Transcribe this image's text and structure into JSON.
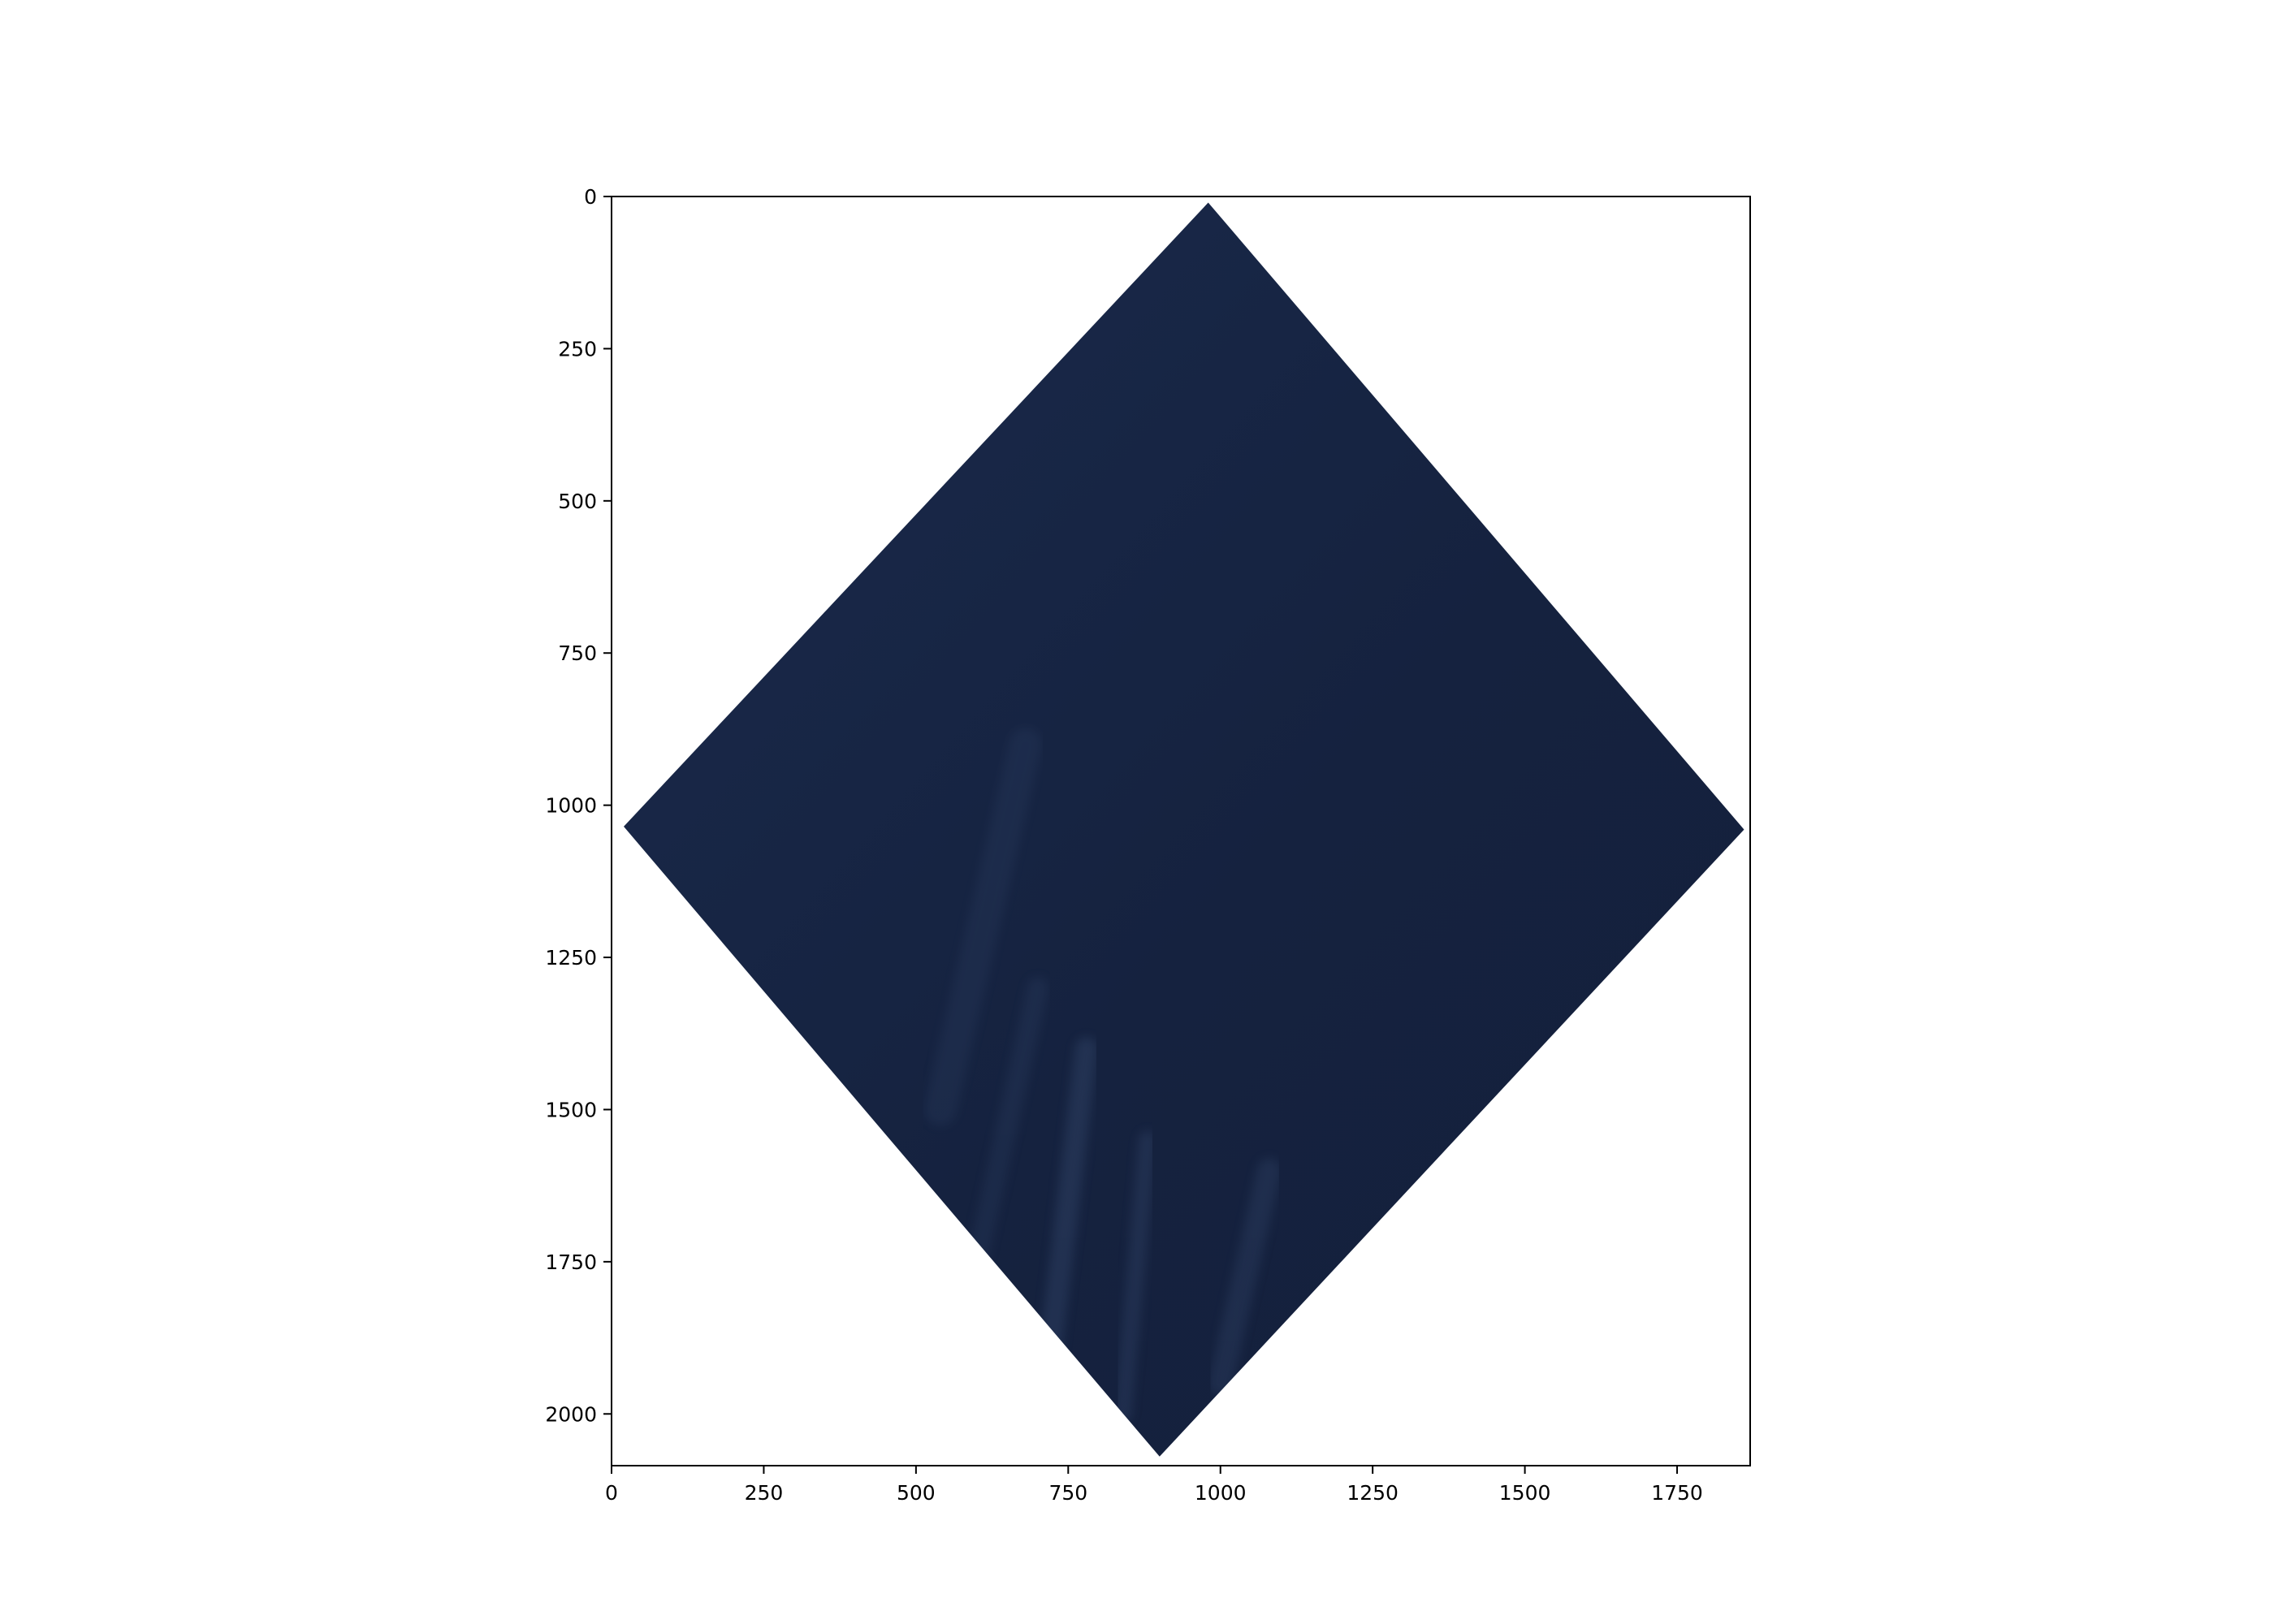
{
  "image": {
    "kind": "satellite scene (rotated swath on white background)",
    "scene_color": "#15223f",
    "scene_edge_color": "#1a2a4c",
    "streak_color": "#3a4f74",
    "background_color": "#ffffff",
    "axis_color": "#000000",
    "x_extent": [
      0,
      1870
    ],
    "y_extent": [
      2085,
      0
    ],
    "scene_corners": [
      {
        "name": "top",
        "x": 980,
        "y": 10
      },
      {
        "name": "right",
        "x": 1860,
        "y": 1040
      },
      {
        "name": "bottom",
        "x": 900,
        "y": 2070
      },
      {
        "name": "left",
        "x": 20,
        "y": 1035
      }
    ]
  },
  "axes": {
    "x_ticks": [
      "0",
      "250",
      "500",
      "750",
      "1000",
      "1250",
      "1500",
      "1750"
    ],
    "y_ticks": [
      "0",
      "250",
      "500",
      "750",
      "1000",
      "1250",
      "1500",
      "1750",
      "2000"
    ]
  }
}
